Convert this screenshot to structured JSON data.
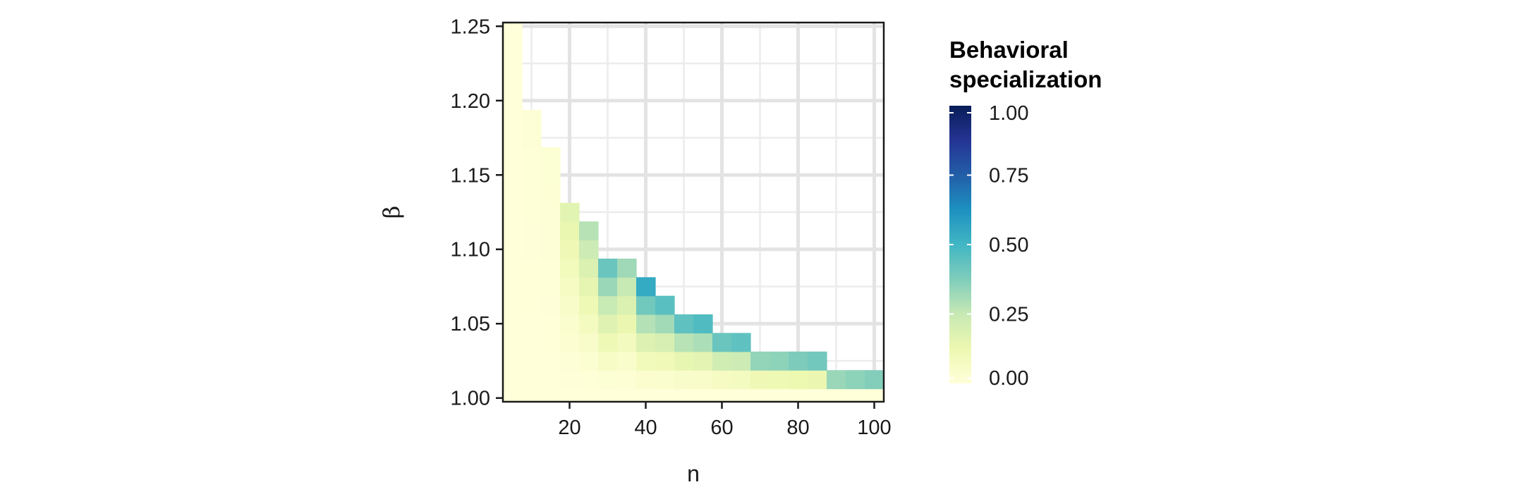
{
  "chart_data": {
    "type": "heatmap",
    "title": "",
    "xlabel": "n",
    "ylabel": "β",
    "xlim": [
      2.5,
      102.5
    ],
    "ylim": [
      0.9975,
      1.2525
    ],
    "x_ticks": [
      20,
      40,
      60,
      80,
      100
    ],
    "x_tick_labels": [
      "20",
      "40",
      "60",
      "80",
      "100"
    ],
    "y_ticks": [
      1.0,
      1.05,
      1.1,
      1.15,
      1.2,
      1.25
    ],
    "y_tick_labels": [
      "1.00",
      "1.05",
      "1.10",
      "1.15",
      "1.20",
      "1.25"
    ],
    "grid": true,
    "x_cell_centers": [
      5,
      10,
      15,
      20,
      25,
      30,
      35,
      40,
      45,
      50,
      55,
      60,
      65,
      70,
      75,
      80,
      85,
      90,
      95,
      100
    ],
    "y_cell_step": 0.0125,
    "cell_width": 5,
    "column_max_beta": [
      1.25,
      1.1875,
      1.1625,
      1.125,
      1.1125,
      1.0875,
      1.0875,
      1.075,
      1.0625,
      1.05,
      1.05,
      1.0375,
      1.0375,
      1.025,
      1.025,
      1.025,
      1.025,
      1.0125,
      1.0125,
      1.0125
    ],
    "column_top_values": [
      0.0,
      0.01,
      0.02,
      0.16,
      0.28,
      0.42,
      0.32,
      0.54,
      0.45,
      0.44,
      0.47,
      0.42,
      0.44,
      0.34,
      0.35,
      0.38,
      0.4,
      0.33,
      0.35,
      0.37
    ],
    "legend": {
      "title": "Behavioral specialization",
      "title_lines": [
        "Behavioral",
        "specialization"
      ],
      "placement": "right",
      "range": [
        0,
        1
      ],
      "ticks": [
        0.0,
        0.25,
        0.5,
        0.75,
        1.0
      ],
      "tick_labels": [
        "0.00",
        "0.25",
        "0.50",
        "0.75",
        "1.00"
      ]
    },
    "colorscale": [
      "#ffffd9",
      "#edf8b1",
      "#c7e9b4",
      "#7fcdbb",
      "#41b6c4",
      "#1d91c0",
      "#225ea8",
      "#253494",
      "#081d58"
    ]
  }
}
